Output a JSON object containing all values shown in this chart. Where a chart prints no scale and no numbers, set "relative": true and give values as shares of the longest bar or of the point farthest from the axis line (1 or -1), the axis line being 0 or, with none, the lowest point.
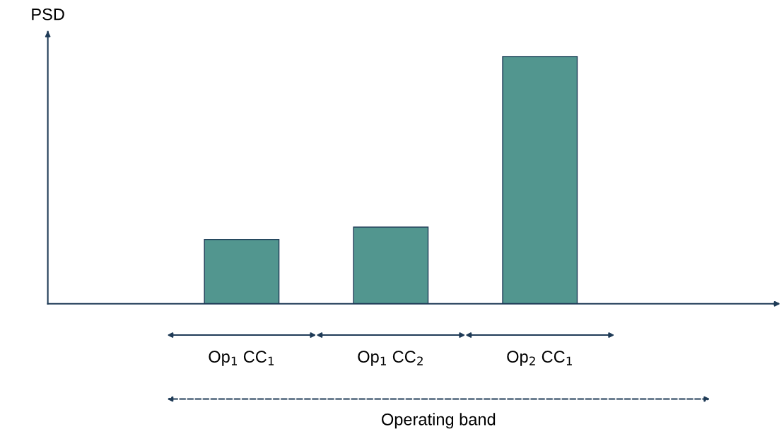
{
  "chart_data": {
    "type": "bar",
    "relative": true,
    "categories": [
      "Op$_{1}$ CC$_{1}$",
      "Op$_{1}$ CC$_{2}$",
      "Op$_{2}$ CC$_{1}$"
    ],
    "values": [
      0.26,
      0.31,
      1
    ],
    "colors": [
      "#52968f",
      "#52968f",
      "#52968f"
    ],
    "annotations": [
      "PSD",
      "Operating band"
    ]
  }
}
